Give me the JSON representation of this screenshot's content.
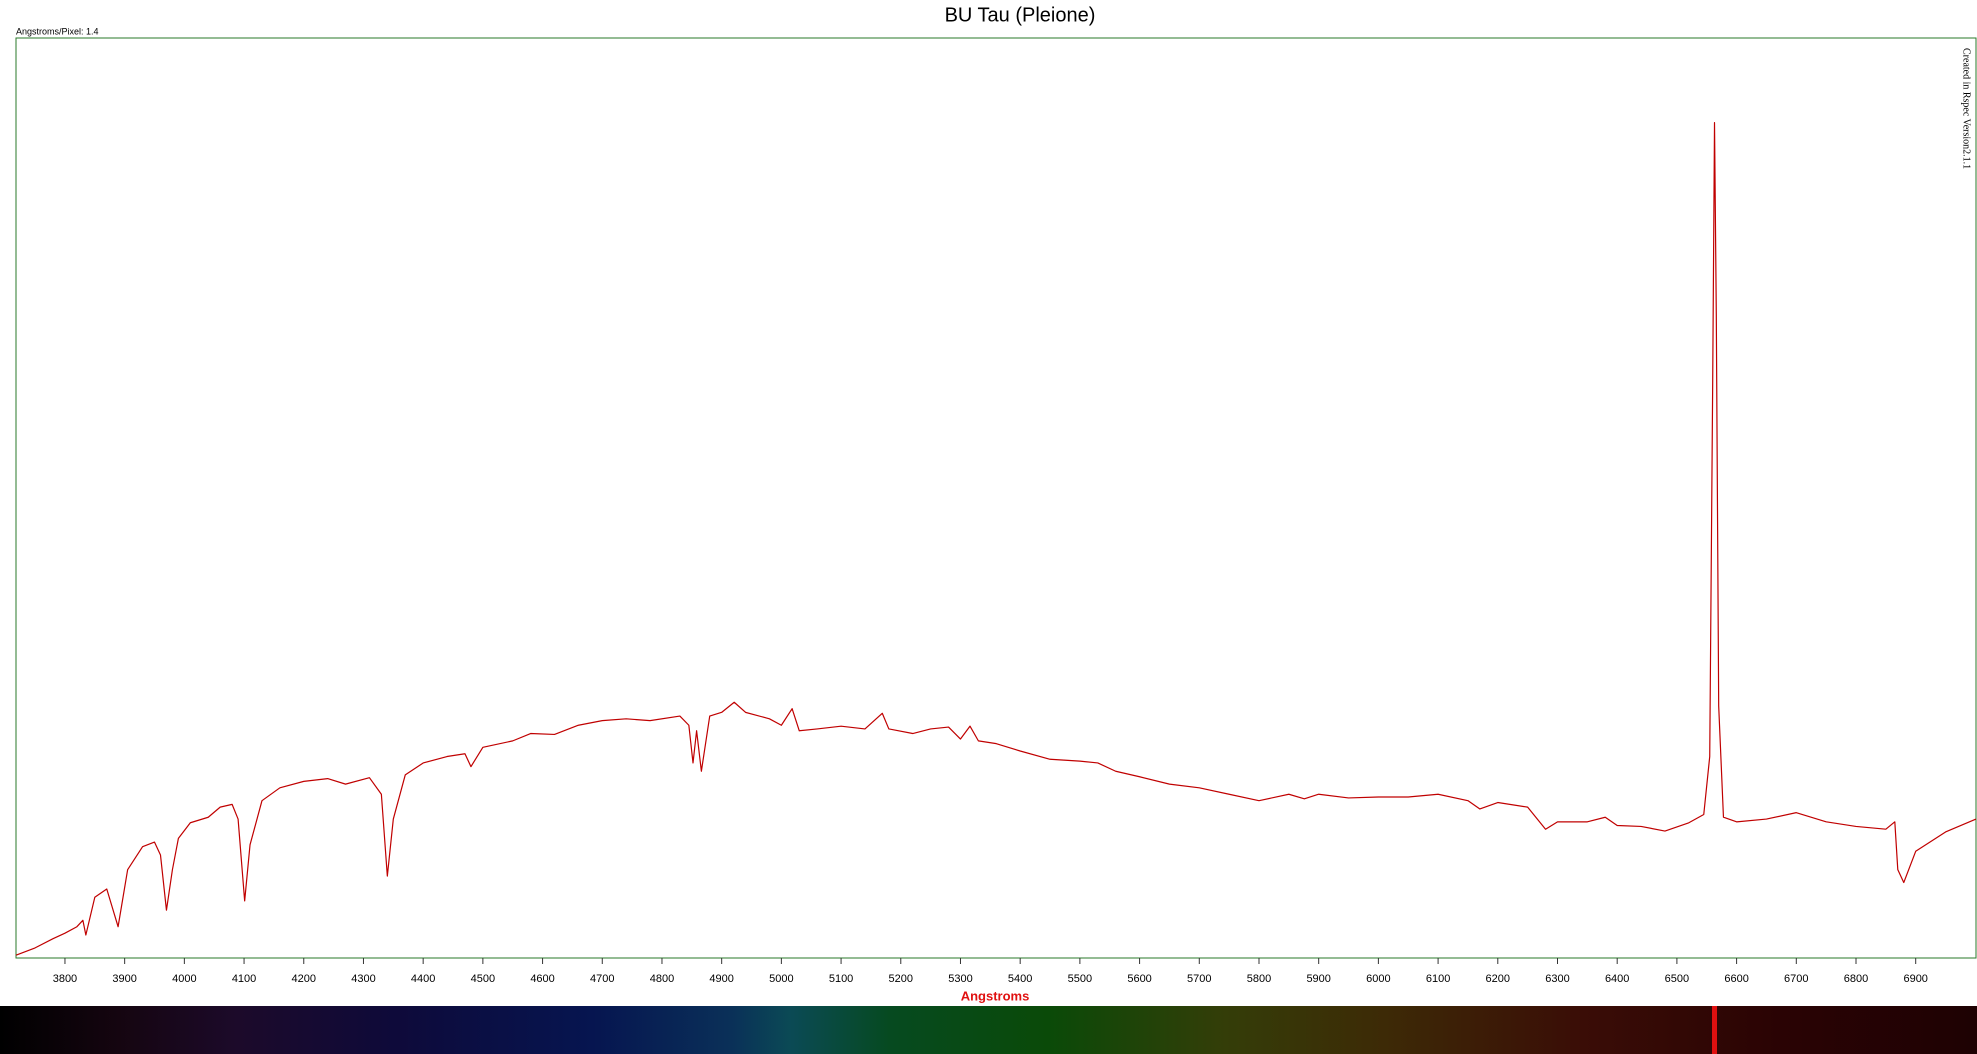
{
  "chart_data": {
    "type": "line",
    "title": "BU Tau (Pleione)",
    "note": "Angstroms/Pixel: 1.4",
    "credit": "Created in Rspec Version2.1.1",
    "x_label": "Angstroms",
    "color": "#c00000",
    "x": [
      3718,
      3750,
      3780,
      3800,
      3820,
      3830,
      3835,
      3850,
      3870,
      3889,
      3905,
      3930,
      3950,
      3960,
      3970,
      3980,
      3990,
      4010,
      4040,
      4060,
      4080,
      4090,
      4101,
      4110,
      4130,
      4160,
      4200,
      4240,
      4270,
      4310,
      4330,
      4340,
      4350,
      4370,
      4400,
      4440,
      4470,
      4480,
      4500,
      4550,
      4580,
      4620,
      4660,
      4700,
      4740,
      4780,
      4830,
      4845,
      4852,
      4858,
      4866,
      4880,
      4900,
      4921,
      4940,
      4980,
      5000,
      5018,
      5030,
      5060,
      5100,
      5140,
      5169,
      5180,
      5220,
      5250,
      5280,
      5300,
      5316,
      5330,
      5360,
      5400,
      5450,
      5500,
      5530,
      5560,
      5600,
      5650,
      5700,
      5750,
      5800,
      5850,
      5876,
      5900,
      5950,
      6000,
      6050,
      6100,
      6150,
      6170,
      6200,
      6250,
      6280,
      6300,
      6350,
      6380,
      6400,
      6440,
      6480,
      6520,
      6545,
      6555,
      6560,
      6563,
      6566,
      6570,
      6578,
      6600,
      6650,
      6700,
      6750,
      6800,
      6850,
      6865,
      6870,
      6880,
      6900,
      6950,
      7001
    ],
    "values": [
      0.3,
      1.1,
      2.1,
      2.7,
      3.4,
      4.1,
      2.5,
      6.6,
      7.5,
      3.4,
      9.6,
      12.1,
      12.6,
      11.2,
      5.2,
      9.6,
      13.0,
      14.7,
      15.3,
      16.4,
      16.7,
      15.1,
      6.2,
      12.3,
      17.1,
      18.5,
      19.2,
      19.5,
      18.9,
      19.6,
      17.8,
      8.9,
      15.1,
      19.9,
      21.2,
      21.9,
      22.2,
      20.8,
      22.9,
      23.6,
      24.4,
      24.3,
      25.3,
      25.8,
      26.0,
      25.8,
      26.3,
      25.3,
      21.2,
      24.7,
      20.3,
      26.3,
      26.7,
      27.8,
      26.7,
      26.0,
      25.3,
      27.1,
      24.7,
      24.9,
      25.2,
      24.9,
      26.6,
      24.9,
      24.4,
      24.9,
      25.1,
      23.8,
      25.2,
      23.6,
      23.3,
      22.5,
      21.6,
      21.4,
      21.2,
      20.3,
      19.7,
      18.9,
      18.5,
      17.8,
      17.1,
      17.8,
      17.3,
      17.8,
      17.4,
      17.5,
      17.5,
      17.8,
      17.1,
      16.2,
      16.9,
      16.4,
      14.0,
      14.8,
      14.8,
      15.3,
      14.4,
      14.3,
      13.8,
      14.7,
      15.6,
      21.9,
      63.0,
      90.8,
      69.9,
      27.4,
      15.3,
      14.8,
      15.1,
      15.8,
      14.8,
      14.3,
      14.0,
      14.8,
      9.6,
      8.2,
      11.6,
      13.7,
      15.1
    ],
    "xlim": [
      3718,
      7001
    ],
    "xticks": [
      3800,
      3900,
      4000,
      4100,
      4200,
      4300,
      4400,
      4500,
      4600,
      4700,
      4800,
      4900,
      5000,
      5100,
      5200,
      5300,
      5400,
      5500,
      5600,
      5700,
      5800,
      5900,
      6000,
      6100,
      6200,
      6300,
      6400,
      6500,
      6600,
      6700,
      6800,
      6900
    ],
    "ylim": [
      0,
      100
    ]
  }
}
